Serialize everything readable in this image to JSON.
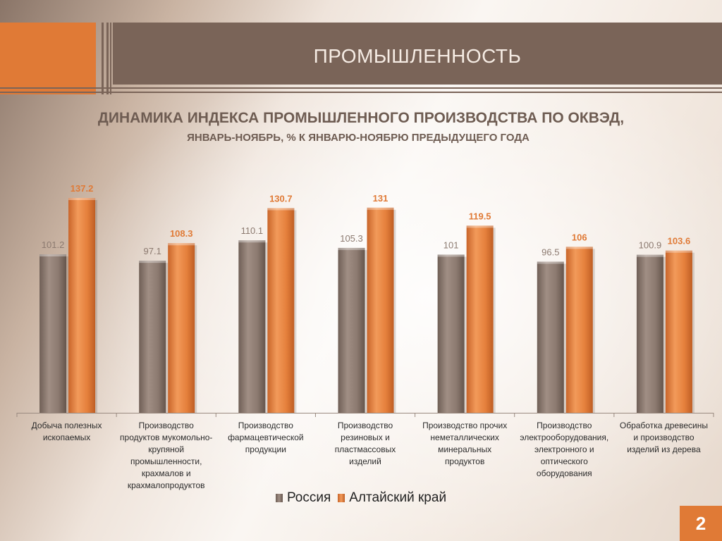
{
  "header": {
    "title": "ПРОМЫШЛЕННОСТЬ"
  },
  "chart_data": {
    "type": "bar",
    "title": "ДИНАМИКА ИНДЕКСА ПРОМЫШЛЕННОГО ПРОИЗВОДСТВА ПО ОКВЭД,",
    "subtitle": "ЯНВАРЬ-НОЯБРЬ, % К ЯНВАРЮ-НОЯБРЮ ПРЕДЫДУЩЕГО ГОДА",
    "categories": [
      "Добыча полезных ископаемых",
      "Производство продуктов мукомольно-крупяной промышленности, крахмалов и крахмалопродуктов",
      "Производство фармацевтической продукции",
      "Производство резиновых и пластмассовых изделий",
      "Производство прочих неметаллических минеральных продуктов",
      "Производство электрооборудования, электронного и оптического оборудования",
      "Обработка древесины и производство изделий из дерева"
    ],
    "series": [
      {
        "name": "Россия",
        "values": [
          101.2,
          97.1,
          110.1,
          105.3,
          101,
          96.5,
          100.9
        ],
        "color": "#8c7a70",
        "label_color": "#8c7a70"
      },
      {
        "name": "Алтайский край",
        "values": [
          137.2,
          108.3,
          130.7,
          131,
          119.5,
          106,
          103.6
        ],
        "color": "#e5803c",
        "label_color": "#e07a36"
      }
    ],
    "ylim": [
      0,
      150
    ],
    "grid": false,
    "legend": "bottom"
  },
  "page": {
    "number": "2"
  },
  "colors": {
    "accent": "#e07a36",
    "header": "#7a6458",
    "text": "#6e5c52"
  }
}
